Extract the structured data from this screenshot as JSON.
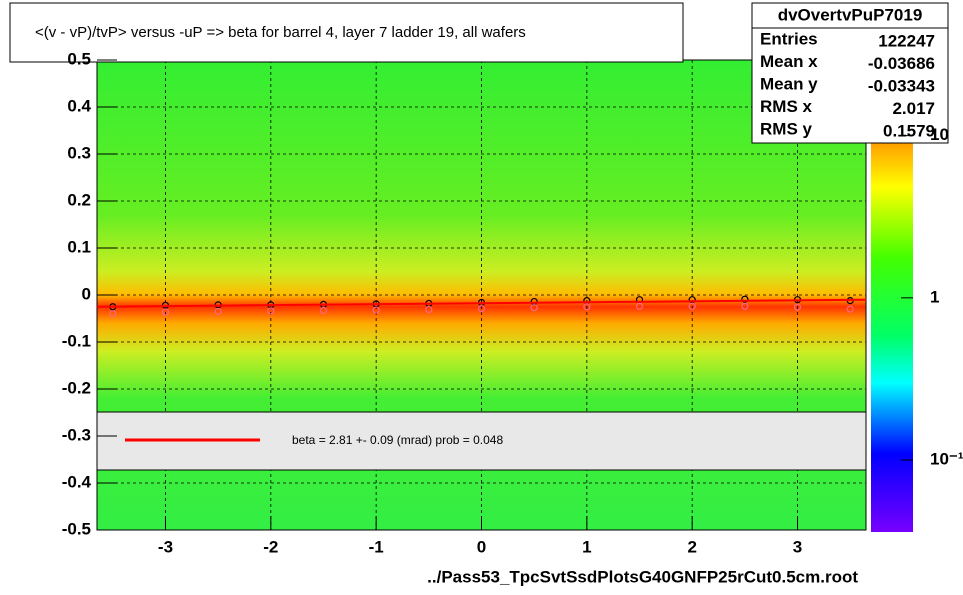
{
  "chart_data": {
    "type": "scatter",
    "title": "<(v - vP)/tvP> versus  -uP => beta for barrel 4, layer 7 ladder 19, all wafers",
    "x_label": "../Pass53_TpcSvtSsdPlotsG40GNFP25rCut0.5cm.root",
    "xlim": [
      -3.65,
      3.65
    ],
    "xticks": [
      -3,
      -2,
      -1,
      0,
      1,
      2,
      3
    ],
    "ylim": [
      -0.5,
      0.5
    ],
    "yticks": [
      -0.5,
      -0.4,
      -0.3,
      -0.2,
      -0.1,
      0,
      0.1,
      0.2,
      0.3,
      0.4,
      0.5
    ],
    "grid": true,
    "series": [
      {
        "name": "profile",
        "color": "#000000",
        "x": [
          -3.5,
          -3,
          -2.5,
          -2,
          -1.5,
          -1,
          -0.5,
          0,
          0.5,
          1,
          1.5,
          2,
          2.5,
          3,
          3.5
        ],
        "values": [
          -0.025,
          -0.022,
          -0.021,
          -0.021,
          -0.02,
          -0.019,
          -0.018,
          -0.016,
          -0.014,
          -0.012,
          -0.01,
          -0.01,
          -0.009,
          -0.01,
          -0.012
        ]
      },
      {
        "name": "mean",
        "color": "#ff6688",
        "x": [
          -3.5,
          -3,
          -2.5,
          -2,
          -1.5,
          -1,
          -0.5,
          0,
          0.5,
          1,
          1.5,
          2,
          2.5,
          3,
          3.5
        ],
        "values": [
          -0.04,
          -0.036,
          -0.035,
          -0.034,
          -0.033,
          -0.032,
          -0.031,
          -0.029,
          -0.027,
          -0.025,
          -0.024,
          -0.024,
          -0.024,
          -0.026,
          -0.03
        ]
      }
    ],
    "fit": {
      "color": "#ff0000",
      "x": [
        -3.65,
        3.65
      ],
      "values": [
        -0.025,
        -0.01
      ],
      "label": "beta =    2.81 +-  0.09 (mrad) prob = 0.048"
    },
    "colorbar": {
      "log": true,
      "zlim": [
        0.036,
        9.4
      ],
      "ticks": [
        {
          "value": 0.1,
          "label": "10⁻¹"
        },
        1,
        10
      ]
    },
    "stats": {
      "name": "dvOvertvPuP7019",
      "rows": [
        [
          "Entries",
          122247
        ],
        [
          "Mean x",
          -0.03686
        ],
        [
          "Mean y",
          -0.03343
        ],
        [
          "RMS x",
          2.017
        ],
        [
          "RMS y",
          0.1579
        ]
      ]
    }
  }
}
